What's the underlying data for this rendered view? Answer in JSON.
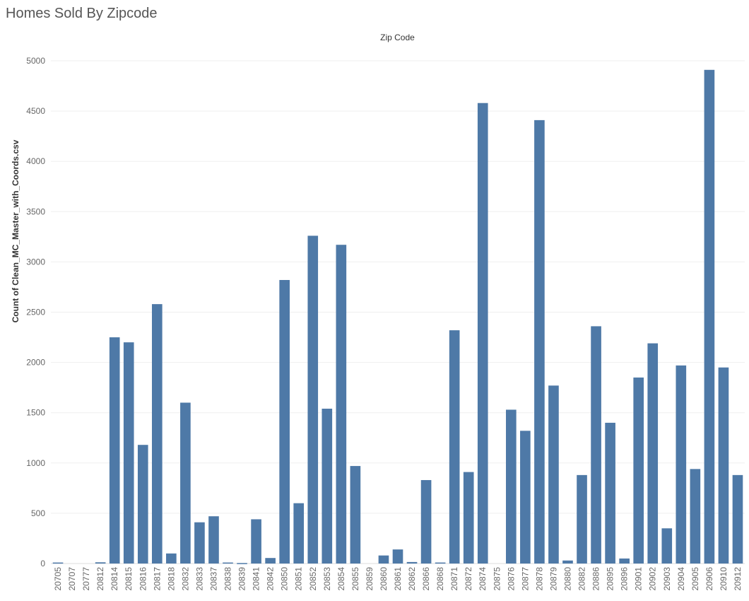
{
  "title": "Homes Sold By Zipcode",
  "chart_data": {
    "type": "bar",
    "title": "Homes Sold By Zipcode",
    "column_header": "Zip Code",
    "ylabel": "Count of Clean_MC_Master_with_Coords.csv",
    "ylim": [
      0,
      5000
    ],
    "yticks": [
      0,
      500,
      1000,
      1500,
      2000,
      2500,
      3000,
      3500,
      4000,
      4500,
      5000
    ],
    "grid": true,
    "color": "#4e79a7",
    "categories": [
      "20705",
      "20707",
      "20777",
      "20812",
      "20814",
      "20815",
      "20816",
      "20817",
      "20818",
      "20832",
      "20833",
      "20837",
      "20838",
      "20839",
      "20841",
      "20842",
      "20850",
      "20851",
      "20852",
      "20853",
      "20854",
      "20855",
      "20859",
      "20860",
      "20861",
      "20862",
      "20866",
      "20868",
      "20871",
      "20872",
      "20874",
      "20875",
      "20876",
      "20877",
      "20878",
      "20879",
      "20880",
      "20882",
      "20886",
      "20895",
      "20896",
      "20901",
      "20902",
      "20903",
      "20904",
      "20905",
      "20906",
      "20910",
      "20912"
    ],
    "values": [
      10,
      0,
      0,
      12,
      2250,
      2200,
      1180,
      2580,
      100,
      1600,
      410,
      470,
      10,
      5,
      440,
      55,
      2820,
      600,
      3260,
      1540,
      3170,
      970,
      0,
      80,
      140,
      15,
      830,
      10,
      2320,
      910,
      4580,
      0,
      1530,
      1320,
      4410,
      1770,
      30,
      880,
      2360,
      1400,
      50,
      1850,
      2190,
      350,
      1970,
      940,
      4910,
      1950,
      880
    ]
  }
}
